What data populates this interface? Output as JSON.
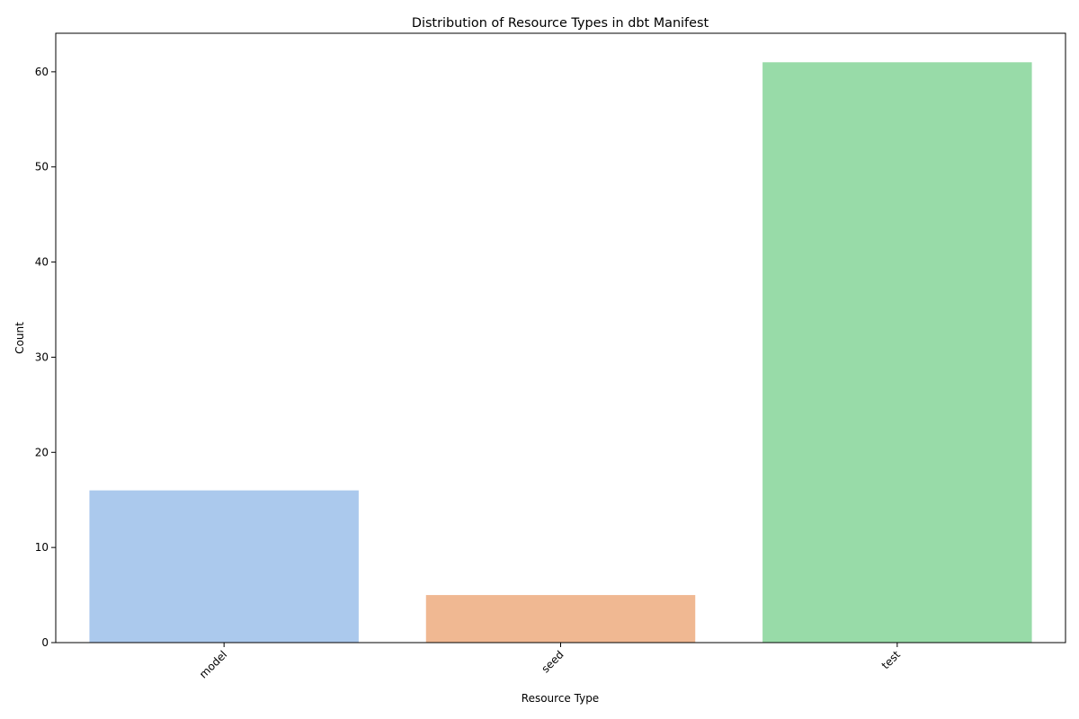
{
  "chart_data": {
    "type": "bar",
    "title": "Distribution of Resource Types in dbt Manifest",
    "xlabel": "Resource Type",
    "ylabel": "Count",
    "categories": [
      "model",
      "seed",
      "test"
    ],
    "values": [
      16,
      5,
      61
    ],
    "colors": [
      "#abc9ed",
      "#f0b892",
      "#98dba8"
    ],
    "ylim": [
      0,
      64.05
    ],
    "yticks": [
      0,
      10,
      20,
      30,
      40,
      50,
      60
    ],
    "grid": false,
    "legend": "none",
    "x_tick_rotation": "45 degrees, right-aligned"
  }
}
